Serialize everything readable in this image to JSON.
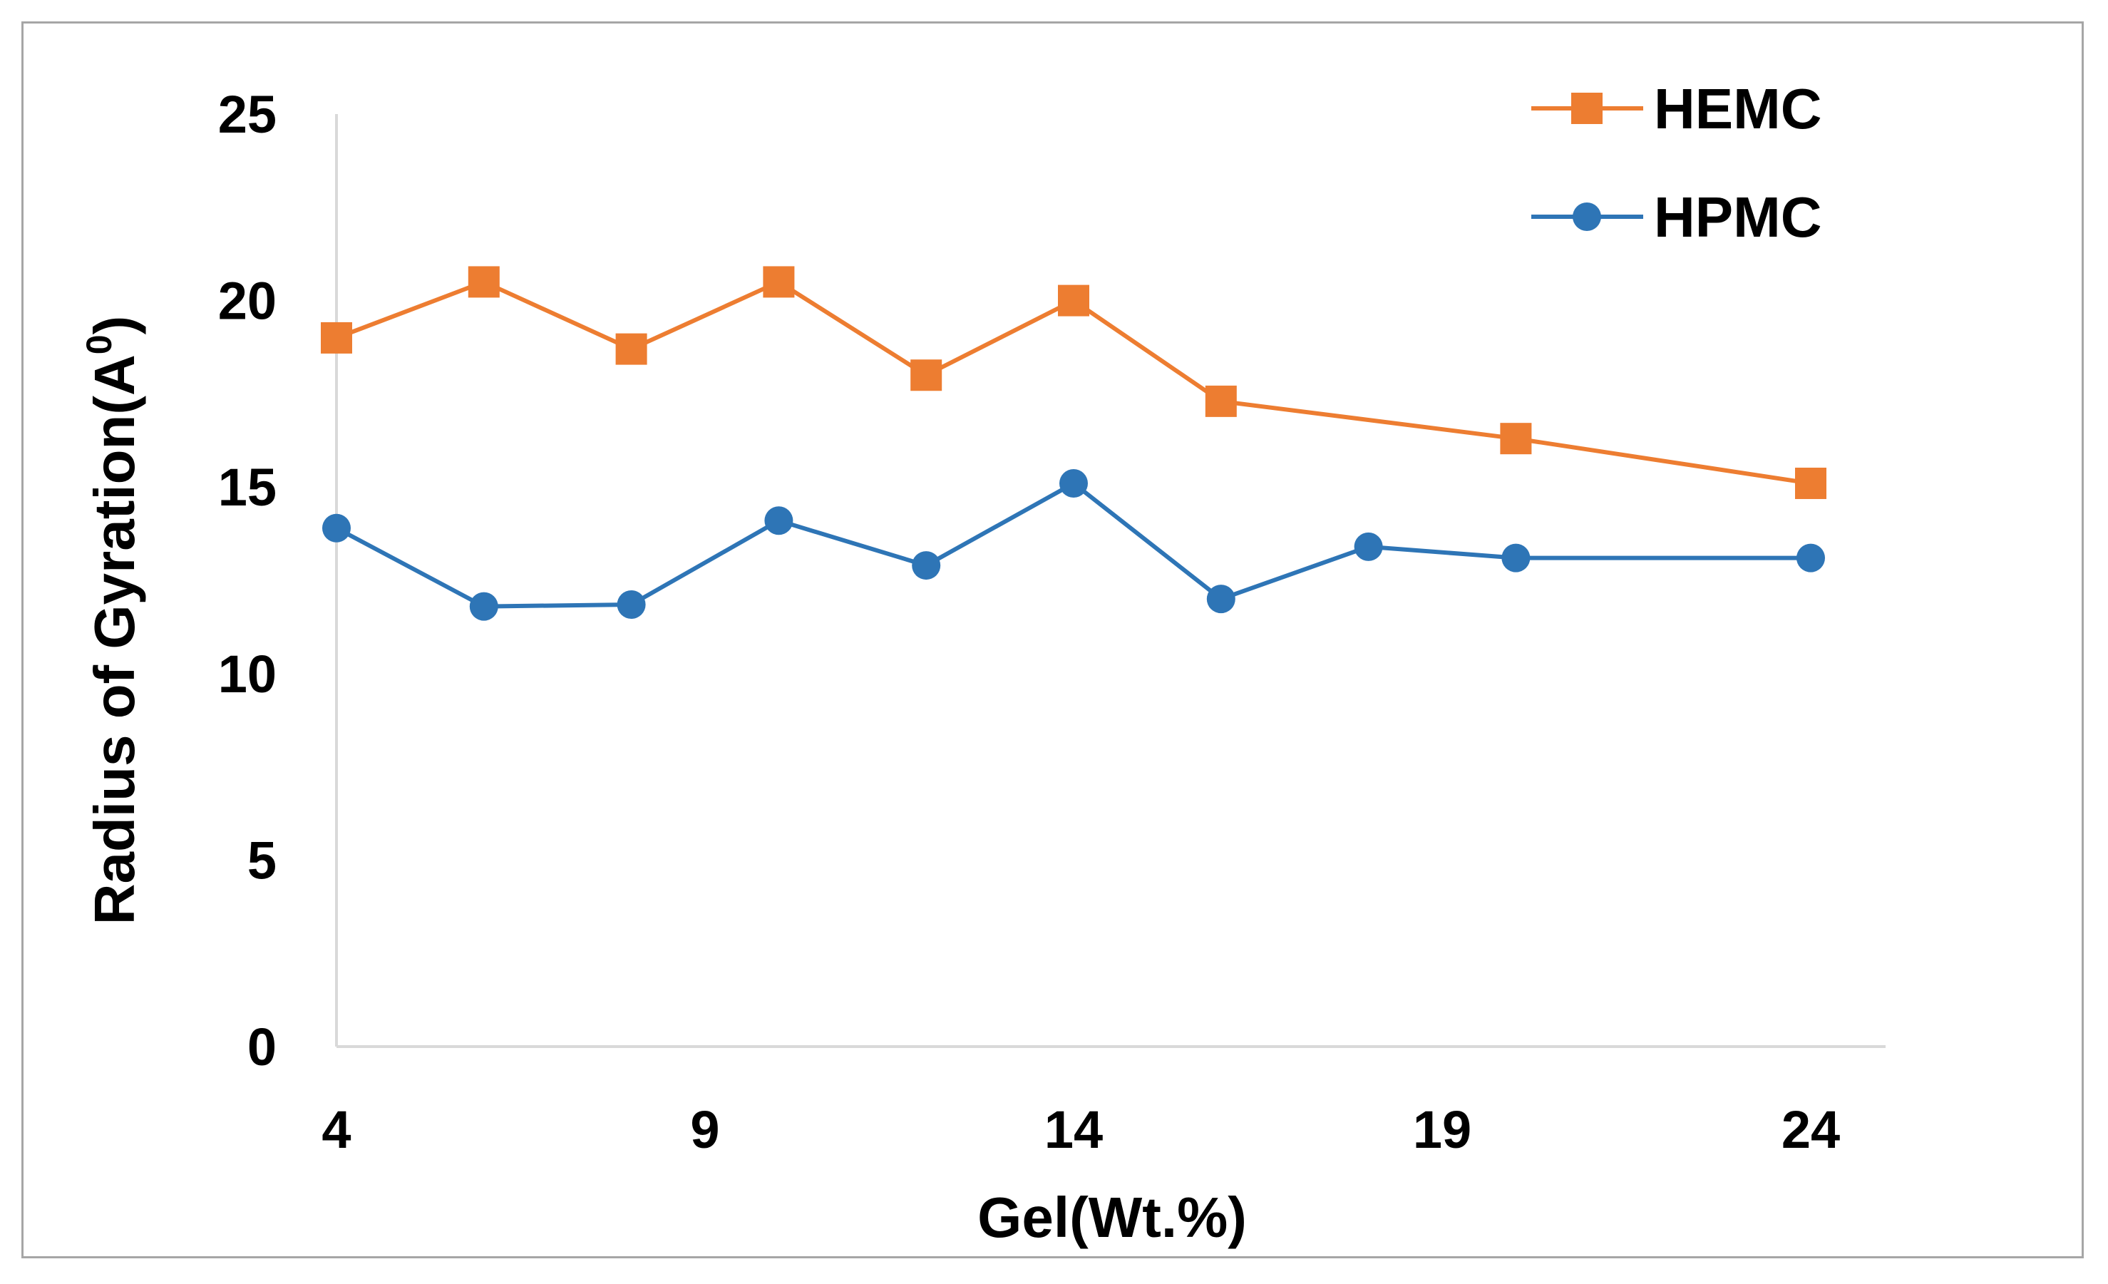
{
  "chart_data": {
    "type": "line",
    "title": "",
    "xlabel": "Gel(Wt.%)",
    "ylabel_main": "Radius of Gyration(A",
    "ylabel_sup": "0",
    "ylabel_close": ")",
    "xlim": [
      4,
      25
    ],
    "ylim": [
      0,
      25
    ],
    "xticks": [
      4,
      9,
      14,
      19,
      24
    ],
    "yticks": [
      0,
      5,
      10,
      15,
      20,
      25
    ],
    "grid": false,
    "legend_position": "top-right",
    "series": [
      {
        "name": "HEMC",
        "color": "#ed7d31",
        "marker": "square",
        "x": [
          4,
          6,
          8,
          10,
          12,
          14,
          16,
          20,
          24
        ],
        "y": [
          19.0,
          20.5,
          18.7,
          20.5,
          18.0,
          20.0,
          17.3,
          16.3,
          15.1
        ]
      },
      {
        "name": "HPMC",
        "color": "#2e75b6",
        "marker": "circle",
        "x": [
          4,
          6,
          8,
          10,
          12,
          14,
          16,
          18,
          20,
          24
        ],
        "y": [
          13.9,
          11.8,
          11.85,
          14.1,
          12.9,
          15.1,
          12.0,
          13.4,
          13.1,
          13.1
        ]
      }
    ]
  }
}
